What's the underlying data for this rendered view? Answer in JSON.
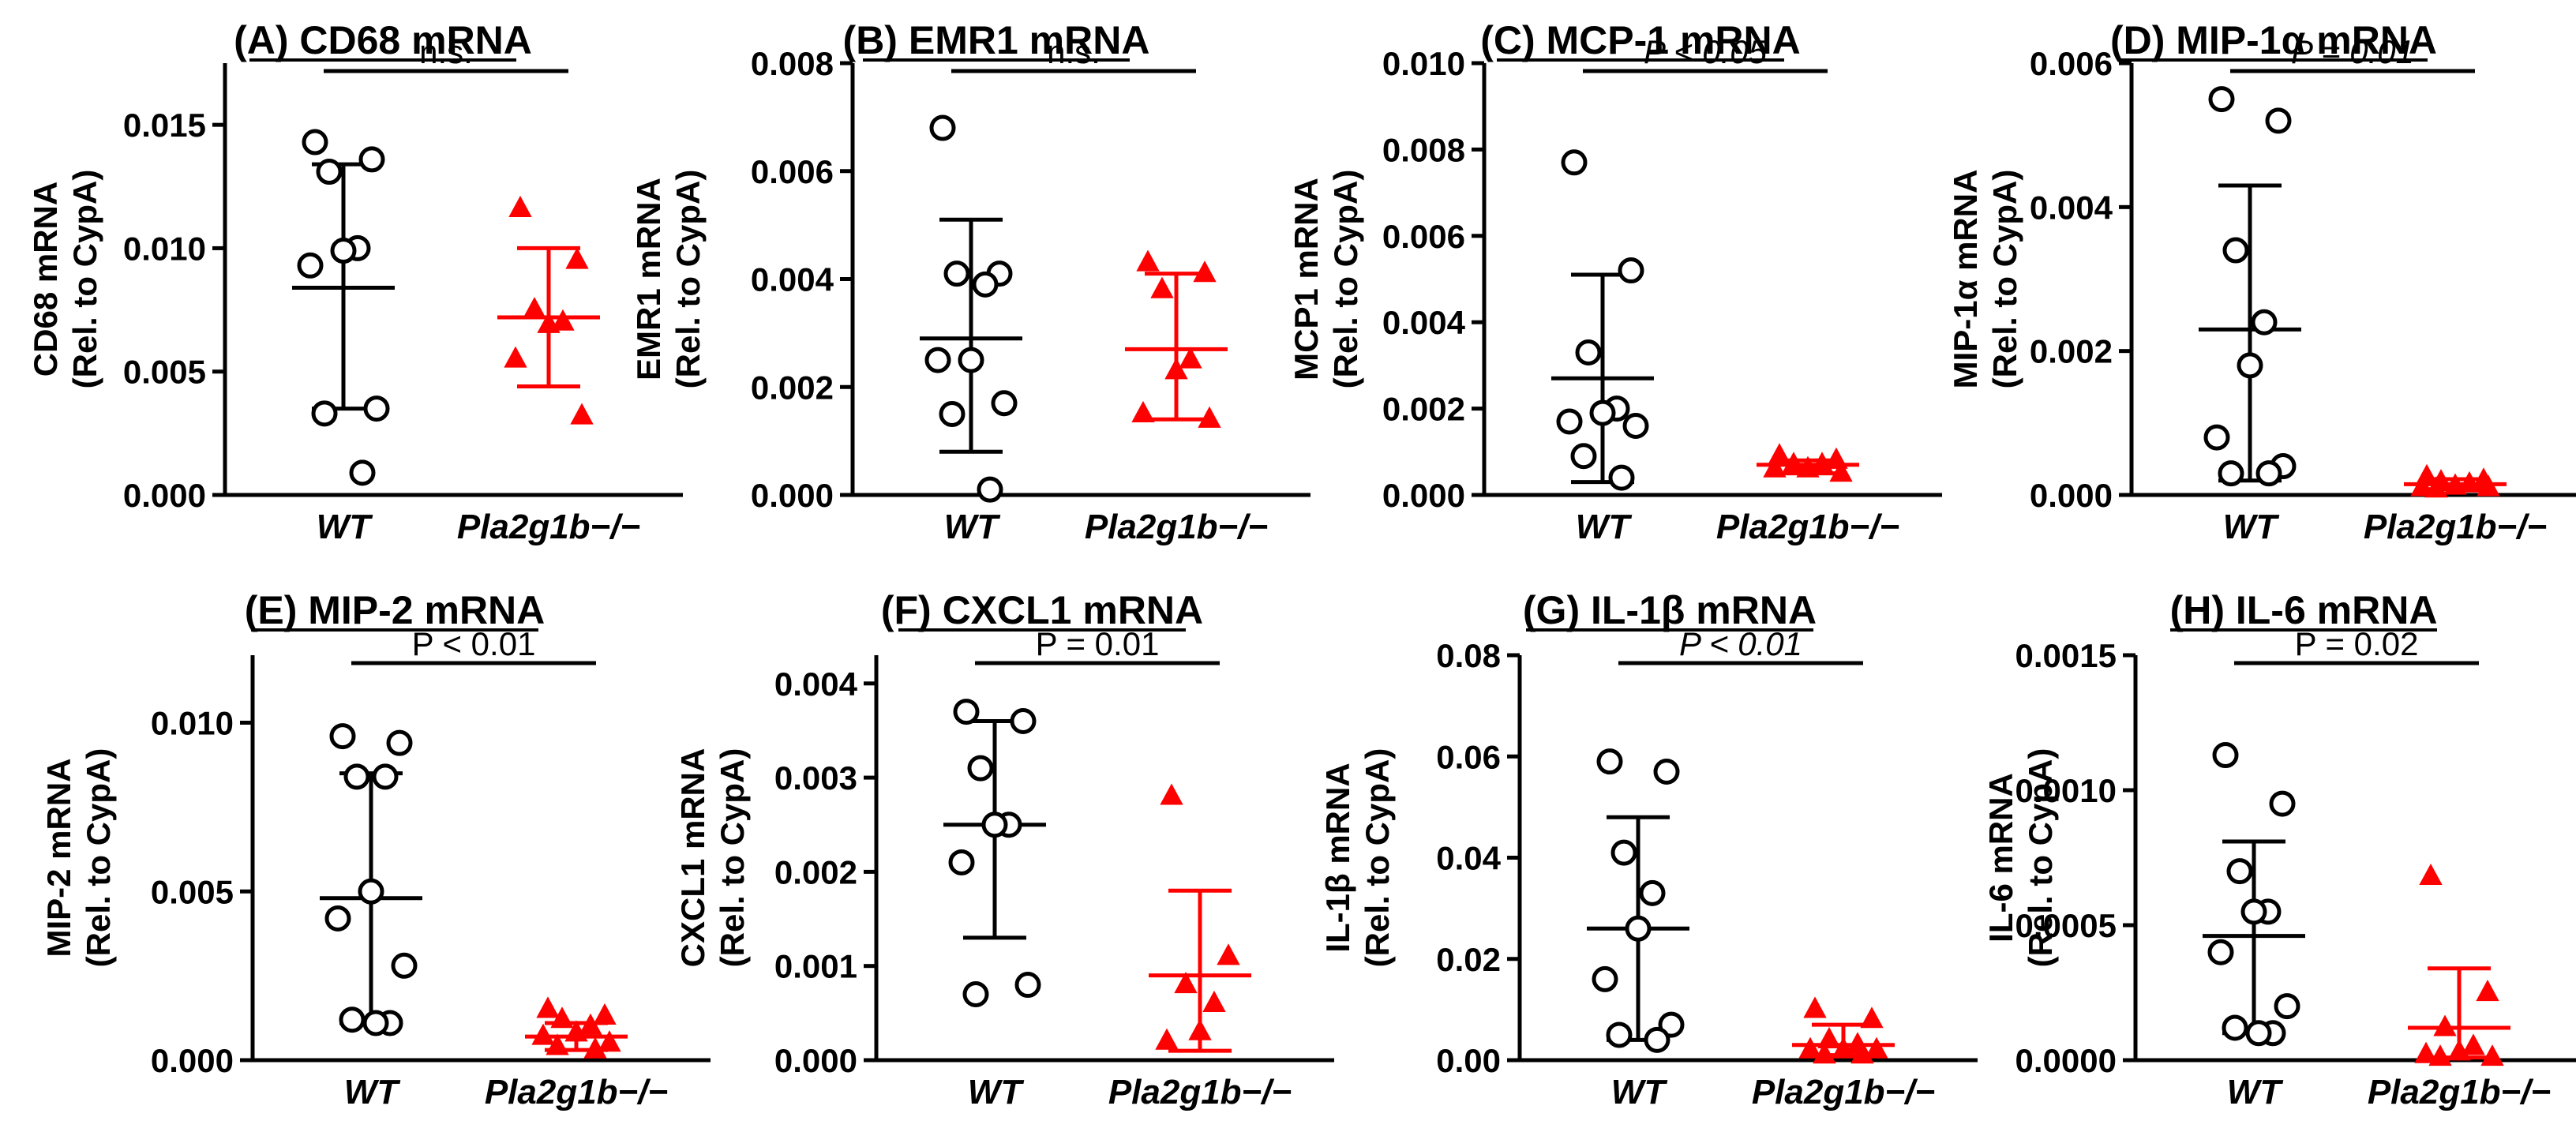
{
  "colors": {
    "wt": "#000000",
    "ko": "#ff0000"
  },
  "chart_data": [
    {
      "type": "scatter",
      "title": "(A) CD68 mRNA",
      "ylabel": [
        "CD68 mRNA",
        "(Rel. to CypA)"
      ],
      "categories": [
        "WT",
        "Pla2g1b−/−"
      ],
      "ylim": [
        0,
        0.0175
      ],
      "yticks": [
        "0.000",
        "0.005",
        "0.010",
        "0.015"
      ],
      "yticks_values": [
        0,
        0.005,
        0.01,
        0.015
      ],
      "significance": {
        "text": "n.s.",
        "italic": false
      },
      "series": [
        {
          "name": "WT",
          "marker": "circle",
          "values": [
            0.0143,
            0.0136,
            0.0131,
            0.01,
            0.0099,
            0.0093,
            0.0035,
            0.0033,
            0.0009
          ],
          "mean": 0.0084,
          "err": [
            0.0035,
            0.0134
          ]
        },
        {
          "name": "Pla2g1b−/−",
          "marker": "triangle",
          "values": [
            0.0116,
            0.0095,
            0.0075,
            0.007,
            0.0069,
            0.0055,
            0.0032
          ],
          "mean": 0.0072,
          "err": [
            0.0044,
            0.01
          ]
        }
      ]
    },
    {
      "type": "scatter",
      "title": "(B) EMR1 mRNA",
      "ylabel": [
        "EMR1 mRNA",
        "(Rel. to CypA)"
      ],
      "categories": [
        "WT",
        "Pla2g1b−/−"
      ],
      "ylim": [
        0,
        0.008
      ],
      "yticks": [
        "0.000",
        "0.002",
        "0.004",
        "0.006",
        "0.008"
      ],
      "yticks_values": [
        0,
        0.002,
        0.004,
        0.006,
        0.008
      ],
      "significance": {
        "text": "n.s.",
        "italic": false
      },
      "series": [
        {
          "name": "WT",
          "marker": "circle",
          "values": [
            0.0068,
            0.0041,
            0.0041,
            0.0039,
            0.0025,
            0.0025,
            0.0017,
            0.0015,
            0.0001
          ],
          "mean": 0.0029,
          "err": [
            0.0008,
            0.0051
          ]
        },
        {
          "name": "Pla2g1b−/−",
          "marker": "triangle",
          "values": [
            0.0043,
            0.0041,
            0.0038,
            0.0025,
            0.0023,
            0.0015,
            0.0014
          ],
          "mean": 0.0027,
          "err": [
            0.0014,
            0.0041
          ]
        }
      ]
    },
    {
      "type": "scatter",
      "title": "(C) MCP-1 mRNA",
      "ylabel": [
        "MCP1 mRNA",
        "(Rel. to CypA)"
      ],
      "categories": [
        "WT",
        "Pla2g1b−/−"
      ],
      "ylim": [
        0,
        0.01
      ],
      "yticks": [
        "0.000",
        "0.002",
        "0.004",
        "0.006",
        "0.008",
        "0.010"
      ],
      "yticks_values": [
        0,
        0.002,
        0.004,
        0.006,
        0.008,
        0.01
      ],
      "significance": {
        "text": "P < 0.05",
        "italic": true
      },
      "series": [
        {
          "name": "WT",
          "marker": "circle",
          "values": [
            0.0077,
            0.0052,
            0.0033,
            0.002,
            0.0019,
            0.0017,
            0.0016,
            0.0009,
            0.0004
          ],
          "mean": 0.0027,
          "err": [
            0.0003,
            0.0051
          ]
        },
        {
          "name": "Pla2g1b−/−",
          "marker": "triangle",
          "values": [
            0.0009,
            0.0008,
            0.0007,
            0.0007,
            0.0006,
            0.0006,
            0.0005
          ],
          "mean": 0.0007,
          "err": [
            0.0005,
            0.0008
          ]
        }
      ]
    },
    {
      "type": "scatter",
      "title": "(D) MIP-1α mRNA",
      "ylabel": [
        "MIP-1α mRNA",
        "(Rel. to CypA)"
      ],
      "categories": [
        "WT",
        "Pla2g1b−/−"
      ],
      "ylim": [
        0,
        0.006
      ],
      "yticks": [
        "0.000",
        "0.002",
        "0.004",
        "0.006"
      ],
      "yticks_values": [
        0,
        0.002,
        0.004,
        0.006
      ],
      "significance": {
        "text": "P = 0.01",
        "italic": true
      },
      "series": [
        {
          "name": "WT",
          "marker": "circle",
          "values": [
            0.0055,
            0.0052,
            0.0034,
            0.0024,
            0.0018,
            0.0008,
            0.0004,
            0.0003,
            0.0003
          ],
          "mean": 0.0023,
          "err": [
            0.0002,
            0.0043
          ]
        },
        {
          "name": "Pla2g1b−/−",
          "marker": "triangle",
          "values": [
            0.00025,
            0.0002,
            0.00018,
            0.00015,
            0.00012,
            0.0001,
            0.0001,
            8e-05
          ],
          "mean": 0.00015,
          "err": [
            8e-05,
            0.00022
          ]
        }
      ]
    },
    {
      "type": "scatter",
      "title": "(E) MIP-2 mRNA",
      "ylabel": [
        "MIP-2 mRNA",
        "(Rel. to CypA)"
      ],
      "categories": [
        "WT",
        "Pla2g1b−/−"
      ],
      "ylim": [
        0,
        0.012
      ],
      "yticks": [
        "0.000",
        "0.005",
        "0.010"
      ],
      "yticks_values": [
        0,
        0.005,
        0.01
      ],
      "significance": {
        "text": "P < 0.01",
        "italic": false,
        "italic_prefix": "P"
      },
      "series": [
        {
          "name": "WT",
          "marker": "circle",
          "values": [
            0.0096,
            0.0094,
            0.0084,
            0.0084,
            0.005,
            0.0042,
            0.0028,
            0.0012,
            0.0011,
            0.0011
          ],
          "mean": 0.0048,
          "err": [
            0.0011,
            0.0085
          ]
        },
        {
          "name": "Pla2g1b−/−",
          "marker": "triangle",
          "values": [
            0.0015,
            0.0013,
            0.0012,
            0.001,
            0.0008,
            0.0007,
            0.0005,
            0.0004,
            0.0003
          ],
          "mean": 0.0007,
          "err": [
            0.0003,
            0.0011
          ]
        }
      ]
    },
    {
      "type": "scatter",
      "title": "(F) CXCL1 mRNA",
      "ylabel": [
        "CXCL1 mRNA",
        "(Rel. to CypA)"
      ],
      "categories": [
        "WT",
        "Pla2g1b−/−"
      ],
      "ylim": [
        0,
        0.0043
      ],
      "yticks": [
        "0.000",
        "0.001",
        "0.002",
        "0.003",
        "0.004"
      ],
      "yticks_values": [
        0,
        0.001,
        0.002,
        0.003,
        0.004
      ],
      "significance": {
        "text": "P = 0.01",
        "italic": false,
        "italic_prefix": "P"
      },
      "series": [
        {
          "name": "WT",
          "marker": "circle",
          "values": [
            0.0037,
            0.0036,
            0.0031,
            0.0025,
            0.0025,
            0.0021,
            0.0008,
            0.0007
          ],
          "mean": 0.0025,
          "err": [
            0.0013,
            0.0036
          ]
        },
        {
          "name": "Pla2g1b−/−",
          "marker": "triangle",
          "values": [
            0.0028,
            0.0011,
            0.0008,
            0.0006,
            0.0003,
            0.0002
          ],
          "mean": 0.0009,
          "err": [
            0.0001,
            0.0018
          ]
        }
      ]
    },
    {
      "type": "scatter",
      "title": "(G) IL-1β mRNA",
      "ylabel": [
        "IL-1β mRNA",
        "(Rel. to CypA)"
      ],
      "categories": [
        "WT",
        "Pla2g1b−/−"
      ],
      "ylim": [
        0,
        0.08
      ],
      "yticks": [
        "0.00",
        "0.02",
        "0.04",
        "0.06",
        "0.08"
      ],
      "yticks_values": [
        0,
        0.02,
        0.04,
        0.06,
        0.08
      ],
      "significance": {
        "text": "P < 0.01",
        "italic": true
      },
      "series": [
        {
          "name": "WT",
          "marker": "circle",
          "values": [
            0.059,
            0.057,
            0.041,
            0.033,
            0.026,
            0.016,
            0.007,
            0.005,
            0.004
          ],
          "mean": 0.026,
          "err": [
            0.004,
            0.048
          ]
        },
        {
          "name": "Pla2g1b−/−",
          "marker": "triangle",
          "values": [
            0.01,
            0.008,
            0.004,
            0.003,
            0.002,
            0.002,
            0.002,
            0.001,
            0.001
          ],
          "mean": 0.003,
          "err": [
            0.001,
            0.007
          ]
        }
      ]
    },
    {
      "type": "scatter",
      "title": "(H) IL-6 mRNA",
      "ylabel": [
        "IL-6 mRNA",
        "(Rel. to CypA)"
      ],
      "categories": [
        "WT",
        "Pla2g1b−/−"
      ],
      "ylim": [
        0,
        0.0015
      ],
      "yticks": [
        "0.0000",
        "0.0005",
        "0.0010",
        "0.0015"
      ],
      "yticks_values": [
        0,
        0.0005,
        0.001,
        0.0015
      ],
      "significance": {
        "text": "P = 0.02",
        "italic": false,
        "italic_prefix": "P"
      },
      "series": [
        {
          "name": "WT",
          "marker": "circle",
          "values": [
            0.00113,
            0.00095,
            0.0007,
            0.00055,
            0.00055,
            0.0004,
            0.0002,
            0.00012,
            0.0001,
            0.0001
          ],
          "mean": 0.00046,
          "err": [
            0.0001,
            0.00081
          ]
        },
        {
          "name": "Pla2g1b−/−",
          "marker": "triangle",
          "values": [
            0.00068,
            0.00025,
            0.00012,
            5e-05,
            3e-05,
            2e-05,
            1e-05,
            1e-05
          ],
          "mean": 0.00012,
          "err": [
            1e-05,
            0.00034
          ]
        }
      ]
    }
  ]
}
